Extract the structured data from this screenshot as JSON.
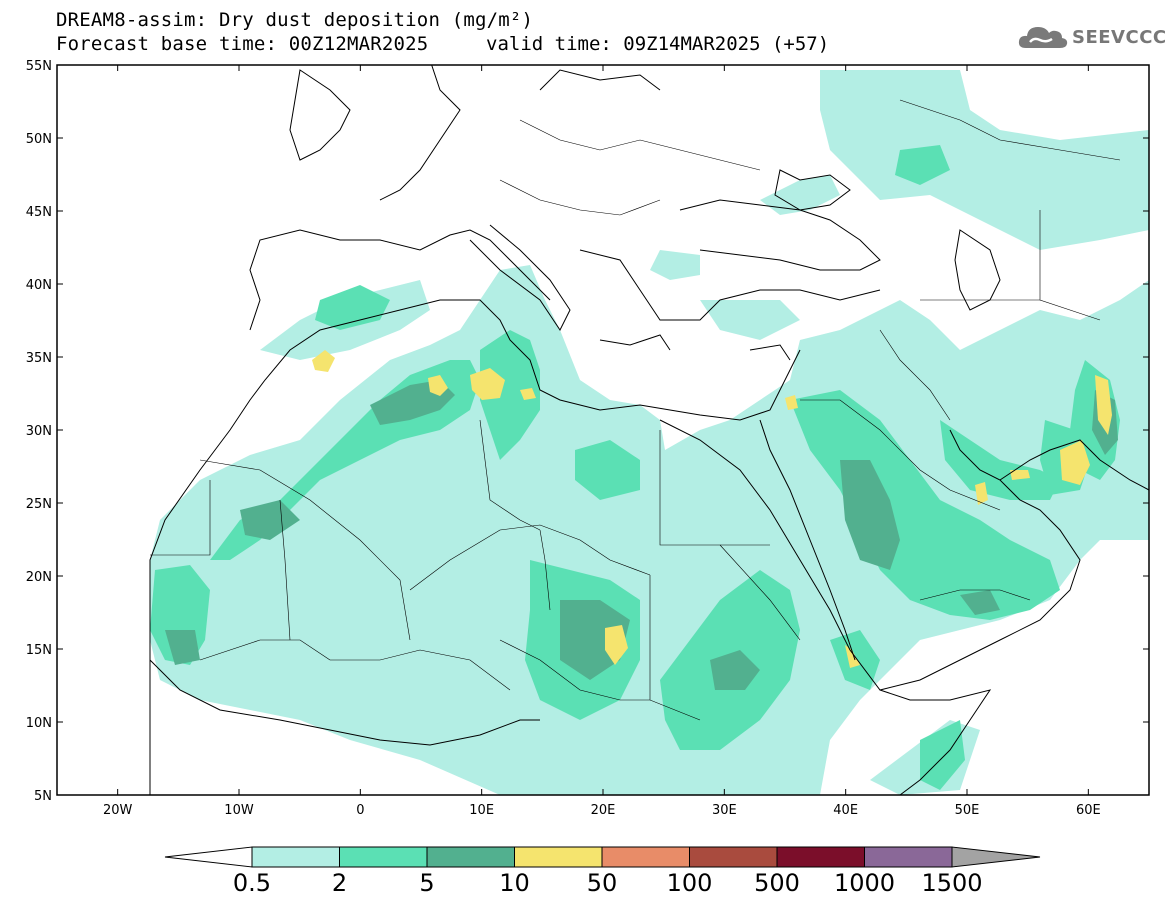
{
  "title": {
    "line1": "DREAM8-assim: Dry dust deposition (mg/m²)",
    "base": "Forecast base time: 00Z12MAR2025",
    "valid": "valid time: 09Z14MAR2025 (+57)"
  },
  "logo": {
    "icon": "cloud-icon",
    "text": "SEEVCCC"
  },
  "map": {
    "lon_range": [
      -25,
      65
    ],
    "lat_range": [
      5,
      55
    ],
    "x_ticks": [
      "20W",
      "10W",
      "0",
      "10E",
      "20E",
      "30E",
      "40E",
      "50E",
      "60E"
    ],
    "y_ticks": [
      "55N",
      "50N",
      "45N",
      "40N",
      "35N",
      "30N",
      "25N",
      "20N",
      "15N",
      "10N",
      "5N"
    ]
  },
  "colorbar": {
    "labels": [
      "0.5",
      "2",
      "5",
      "10",
      "50",
      "100",
      "500",
      "1000",
      "1500"
    ],
    "colors": [
      "#b3eee4",
      "#5be0b4",
      "#52b08f",
      "#f5e46e",
      "#e88c68",
      "#a94b3e",
      "#7b0e2a",
      "#8a6898",
      "#a3a3a3"
    ]
  }
}
